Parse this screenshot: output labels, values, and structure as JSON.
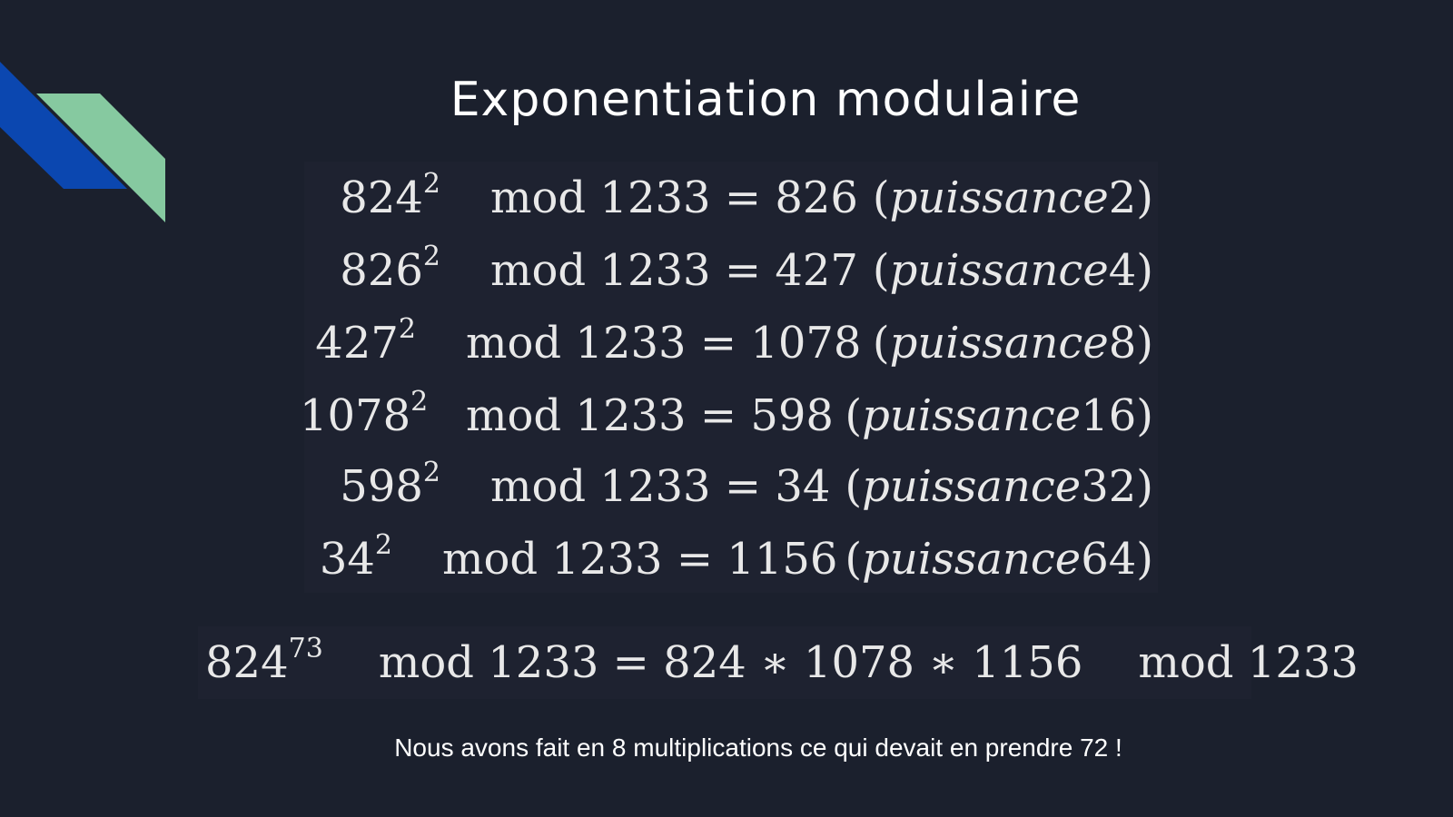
{
  "slide": {
    "title": "Exponentiation modulaire",
    "rows": [
      {
        "base": "824",
        "exp": "2",
        "mod": "mod 1233",
        "eq": "=",
        "result": "826",
        "label": "puissance",
        "power": "2"
      },
      {
        "base": "826",
        "exp": "2",
        "mod": "mod 1233",
        "eq": "=",
        "result": "427",
        "label": "puissance",
        "power": "4"
      },
      {
        "base": "427",
        "exp": "2",
        "mod": "mod 1233",
        "eq": "=",
        "result": "1078",
        "label": "puissance",
        "power": "8"
      },
      {
        "base": "1078",
        "exp": "2",
        "mod": "mod 1233",
        "eq": "=",
        "result": "598",
        "label": "puissance",
        "power": "16"
      },
      {
        "base": "598",
        "exp": "2",
        "mod": "mod 1233",
        "eq": "=",
        "result": "34",
        "label": "puissance",
        "power": "32"
      },
      {
        "base": "34",
        "exp": "2",
        "mod": "mod 1233",
        "eq": "=",
        "result": "1156",
        "label": "puissance",
        "power": "64"
      }
    ],
    "final": {
      "base": "824",
      "exp": "73",
      "mod": "mod 1233",
      "rhs": "= 824 ∗ 1078 ∗ 1156",
      "mod_end": "mod 1233"
    },
    "note": "Nous avons fait en 8 multiplications ce qui devait en prendre 72 !",
    "colors": {
      "background": "#1b202d",
      "stripe_blue": "#0b47b0",
      "stripe_green": "#86c9a0"
    }
  }
}
